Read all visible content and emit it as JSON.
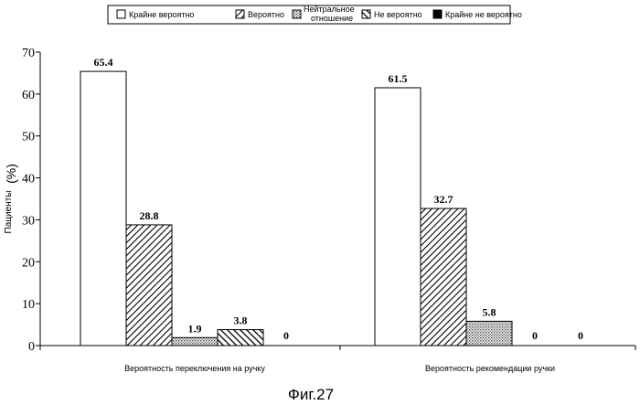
{
  "chart_data": {
    "type": "bar",
    "caption": "Фиг.27",
    "ylabel": "Пациенты",
    "ylabel_unit": "(%)",
    "ylim": [
      0,
      70
    ],
    "yticks": [
      0,
      10,
      20,
      30,
      40,
      50,
      60,
      70
    ],
    "categories": [
      "Вероятность переключения на ручку",
      "Вероятность рекомендации ручки"
    ],
    "legend_position": "top",
    "series": [
      {
        "name": "Крайне вероятно",
        "values": [
          65.4,
          61.5
        ],
        "fill": "white"
      },
      {
        "name": "Вероятно",
        "values": [
          28.8,
          32.7
        ],
        "fill": "diagonal-hatch"
      },
      {
        "name": [
          "Нейтральное",
          "отношение"
        ],
        "values": [
          1.9,
          5.8
        ],
        "fill": "dotted"
      },
      {
        "name": "Не вероятно",
        "values": [
          3.8,
          0
        ],
        "fill": "cross-hatch"
      },
      {
        "name": "Крайне не вероятно",
        "values": [
          0,
          0
        ],
        "fill": "black"
      }
    ],
    "data_labels": [
      [
        "65.4",
        "28.8",
        "1.9",
        "3.8",
        "0"
      ],
      [
        "61.5",
        "32.7",
        "5.8",
        "0",
        "0"
      ]
    ]
  }
}
